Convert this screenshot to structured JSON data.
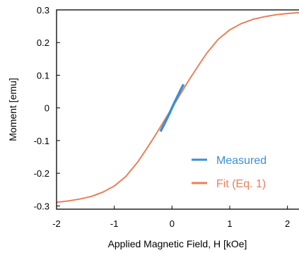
{
  "chart_data": {
    "type": "line",
    "title": "",
    "xlabel": "Applied Magnetic Field, H [kOe]",
    "ylabel": "Moment [emu]",
    "xlim": [
      -2,
      2.2
    ],
    "ylim": [
      -0.31,
      0.3
    ],
    "x_ticks": [
      -2,
      -1,
      0,
      1,
      2
    ],
    "x_tick_labels": [
      "-2",
      "-1",
      "0",
      "1",
      "2"
    ],
    "y_ticks": [
      0.3,
      0.2,
      0.1,
      0,
      -0.1,
      -0.2,
      -0.3
    ],
    "y_tick_labels": [
      "0.3",
      "0.2",
      "0.1",
      "0",
      "-0.1",
      "-0.2",
      "-0.3"
    ],
    "grid": false,
    "legend_position": "bottom-right",
    "series": [
      {
        "name": "Measured",
        "color": "#3a8fd6",
        "x": [
          -0.2,
          -0.15,
          -0.1,
          -0.05,
          0,
          0.05,
          0.1,
          0.15,
          0.2
        ],
        "y": [
          -0.072,
          -0.055,
          -0.037,
          -0.019,
          0,
          0.019,
          0.037,
          0.055,
          0.072
        ]
      },
      {
        "name": "Fit (Eq. 1)",
        "color": "#e8805a",
        "x": [
          -2,
          -1.8,
          -1.6,
          -1.4,
          -1.2,
          -1.0,
          -0.8,
          -0.6,
          -0.5,
          -0.4,
          -0.3,
          -0.2,
          -0.1,
          0,
          0.1,
          0.2,
          0.3,
          0.4,
          0.5,
          0.6,
          0.8,
          1.0,
          1.2,
          1.4,
          1.6,
          1.8,
          2.0,
          2.2
        ],
        "y": [
          -0.289,
          -0.285,
          -0.279,
          -0.271,
          -0.258,
          -0.239,
          -0.21,
          -0.167,
          -0.141,
          -0.114,
          -0.087,
          -0.058,
          -0.029,
          0,
          0.029,
          0.058,
          0.087,
          0.114,
          0.141,
          0.167,
          0.21,
          0.239,
          0.258,
          0.271,
          0.279,
          0.285,
          0.289,
          0.292
        ]
      }
    ]
  }
}
